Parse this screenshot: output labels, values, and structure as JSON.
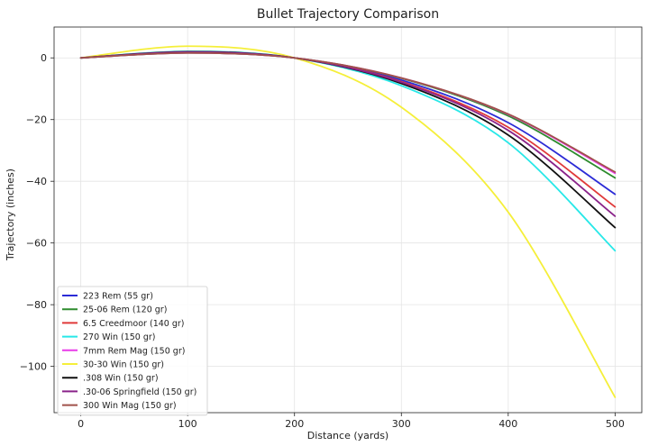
{
  "chart_data": {
    "type": "line",
    "title": "Bullet Trajectory Comparison",
    "xlabel": "Distance (yards)",
    "ylabel": "Trajectory (inches)",
    "xlim": [
      -25,
      525
    ],
    "ylim": [
      -115,
      10
    ],
    "xticks": [
      0,
      100,
      200,
      300,
      400,
      500
    ],
    "yticks": [
      0,
      -20,
      -40,
      -60,
      -80,
      -100
    ],
    "ytick_labels": [
      "0",
      "−20",
      "−40",
      "−60",
      "−80",
      "−100"
    ],
    "grid": true,
    "legend_position": "lower-left",
    "x": [
      0,
      100,
      200,
      300,
      400,
      500
    ],
    "series": [
      {
        "name": "223 Rem (55 gr)",
        "color": "#2b2bd6",
        "values": [
          0,
          1.7,
          0,
          -7.2,
          -21.0,
          -44.2
        ]
      },
      {
        "name": "25-06 Rem (120 gr)",
        "color": "#2e8b2e",
        "values": [
          0,
          1.6,
          0,
          -6.6,
          -18.8,
          -38.9
        ]
      },
      {
        "name": "6.5 Creedmoor (140 gr)",
        "color": "#e03a3a",
        "values": [
          0,
          1.8,
          0,
          -7.7,
          -22.5,
          -48.3
        ]
      },
      {
        "name": "270 Win (150 gr)",
        "color": "#27e8e8",
        "values": [
          0,
          2.1,
          0,
          -9.0,
          -27.5,
          -62.5
        ]
      },
      {
        "name": "7mm Rem Mag (150 gr)",
        "color": "#e83be8",
        "values": [
          0,
          1.6,
          0,
          -6.5,
          -18.3,
          -37.4
        ]
      },
      {
        "name": "30-30 Win (150 gr)",
        "color": "#f5ef3a",
        "values": [
          0,
          3.8,
          0,
          -16.0,
          -50.0,
          -110.0
        ]
      },
      {
        "name": ".308 Win (150 gr)",
        "color": "#111111",
        "values": [
          0,
          2.0,
          0,
          -8.3,
          -25.0,
          -55.0
        ]
      },
      {
        "name": ".30-06 Springfield (150 gr)",
        "color": "#8a238a",
        "values": [
          0,
          1.9,
          0,
          -7.9,
          -23.5,
          -51.3
        ]
      },
      {
        "name": "300 Win Mag (150 gr)",
        "color": "#a0524a",
        "values": [
          0,
          1.6,
          0,
          -6.5,
          -18.2,
          -37.0
        ]
      }
    ]
  }
}
